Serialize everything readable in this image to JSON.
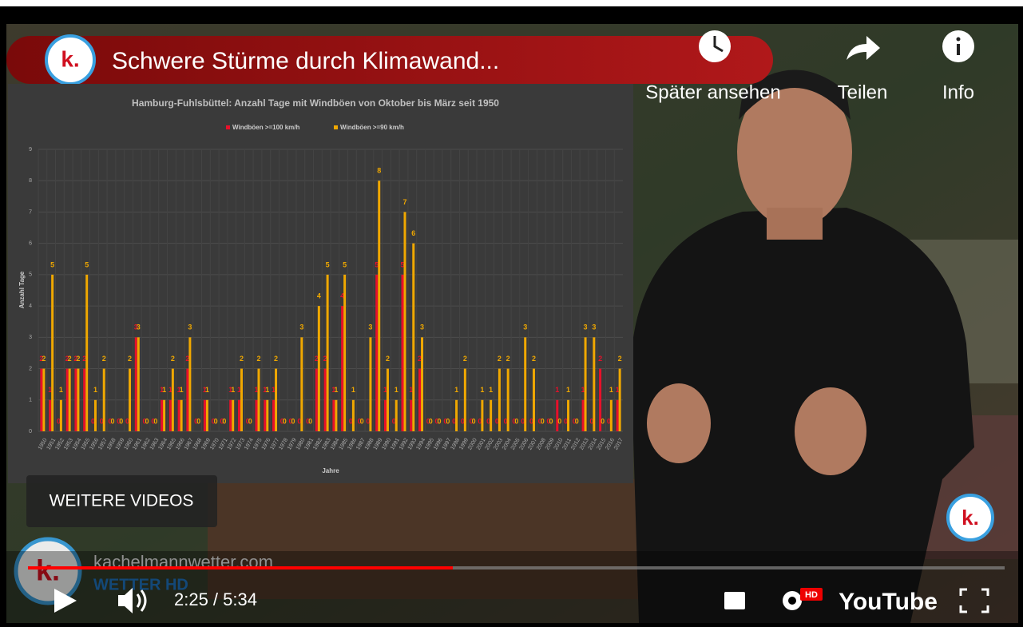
{
  "video": {
    "title": "Schwere Stürme durch Klimawand...",
    "watch_later": "Später ansehen",
    "share": "Teilen",
    "info": "Info",
    "more_videos": "WEITERE VIDEOS",
    "channel_site": "kachelmannwetter.com",
    "channel_sub": "WETTER HD",
    "logo": "k.",
    "time": "2:25 / 5:34",
    "hd_badge": "HD",
    "brand": "YouTube"
  },
  "chart_data": {
    "type": "bar",
    "title": "Hamburg-Fuhlsbüttel: Anzahl Tage mit Windböen von Oktober bis März seit 1950",
    "x_label": "Jahre",
    "y_label": "Anzahl Tage",
    "categories": [
      "1950",
      "1951",
      "1952",
      "1953",
      "1954",
      "1955",
      "1956",
      "1957",
      "1958",
      "1959",
      "1960",
      "1961",
      "1962",
      "1963",
      "1964",
      "1965",
      "1966",
      "1967",
      "1968",
      "1969",
      "1970",
      "1971",
      "1972",
      "1973",
      "1974",
      "1975",
      "1976",
      "1977",
      "1978",
      "1979",
      "1980",
      "1981",
      "1982",
      "1983",
      "1984",
      "1985",
      "1986",
      "1987",
      "1988",
      "1989",
      "1990",
      "1991",
      "1992",
      "1993",
      "1994",
      "1995",
      "1996",
      "1997",
      "1998",
      "1999",
      "2000",
      "2001",
      "2002",
      "2003",
      "2004",
      "2005",
      "2006",
      "2007",
      "2008",
      "2009",
      "2010",
      "2011",
      "2012",
      "2013",
      "2014",
      "2015",
      "2016",
      "2017"
    ],
    "series": [
      {
        "name": "Windböen >=100 km/h",
        "color": "#e8102a",
        "values": [
          2,
          1,
          0,
          2,
          2,
          2,
          0,
          0,
          0,
          0,
          0,
          3,
          0,
          0,
          1,
          1,
          1,
          2,
          0,
          1,
          0,
          0,
          1,
          1,
          0,
          1,
          1,
          1,
          0,
          0,
          0,
          0,
          2,
          2,
          1,
          4,
          0,
          0,
          0,
          5,
          1,
          0,
          5,
          1,
          2,
          0,
          0,
          0,
          0,
          0,
          0,
          0,
          0,
          0,
          0,
          0,
          0,
          0,
          0,
          0,
          1,
          0,
          0,
          1,
          0,
          2,
          0,
          1
        ]
      },
      {
        "name": "Windböen >=90 km/h",
        "color": "#f0a800",
        "values": [
          2,
          5,
          1,
          2,
          2,
          5,
          1,
          2,
          0,
          0,
          2,
          3,
          0,
          0,
          1,
          2,
          1,
          3,
          0,
          1,
          0,
          0,
          1,
          2,
          0,
          2,
          1,
          2,
          0,
          0,
          3,
          0,
          4,
          5,
          1,
          5,
          1,
          0,
          3,
          8,
          2,
          1,
          7,
          6,
          3,
          0,
          0,
          0,
          1,
          2,
          0,
          1,
          1,
          2,
          2,
          0,
          3,
          2,
          0,
          0,
          0,
          1,
          0,
          3,
          3,
          0,
          1,
          2
        ]
      }
    ],
    "ylim": [
      0,
      9
    ],
    "yticks": [
      0,
      1,
      2,
      3,
      4,
      5,
      6,
      7,
      8,
      9
    ],
    "grid": true
  }
}
